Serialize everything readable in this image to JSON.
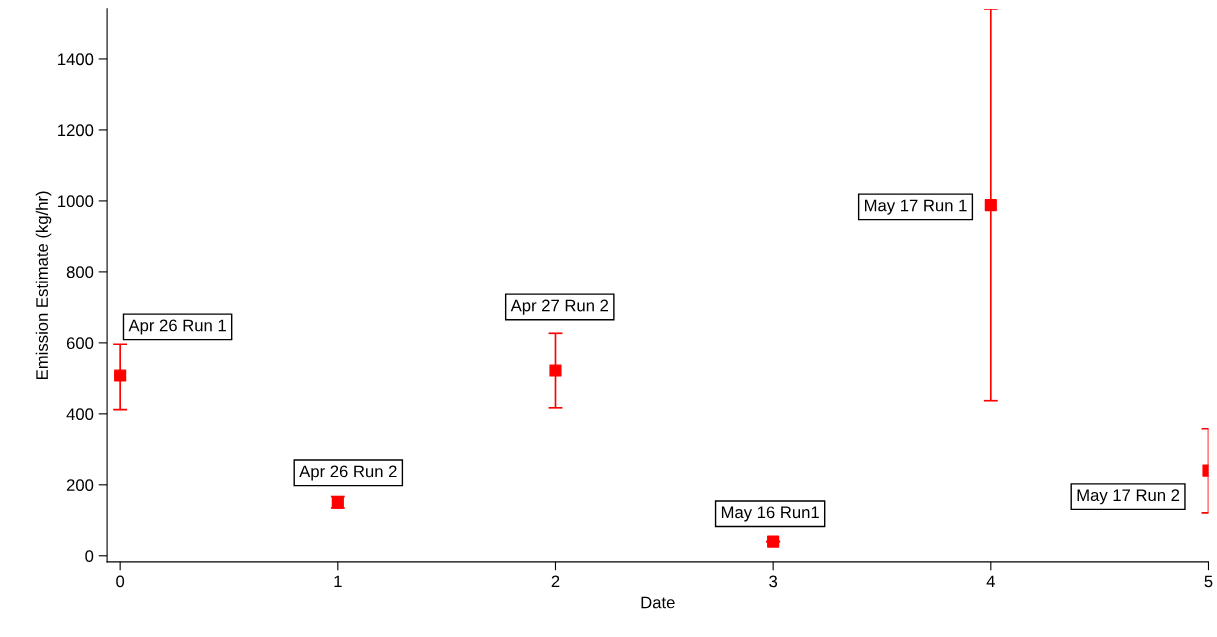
{
  "chart_data": {
    "type": "scatter",
    "xlabel": "Date",
    "ylabel": "Emission Estimate (kg/hr)",
    "x": [
      0,
      1,
      2,
      3,
      4,
      5
    ],
    "series": [
      {
        "color": "#ff0000",
        "values": [
          508,
          150,
          522,
          40,
          988,
          240
        ],
        "errors": [
          [
            412,
            596
          ],
          [
            135,
            167
          ],
          [
            417,
            627
          ],
          null,
          [
            437,
            1541
          ],
          [
            121,
            358
          ]
        ]
      }
    ],
    "marker": "square",
    "grid": false,
    "xlim": [
      -0.06,
      5
    ],
    "xticks": [
      0,
      1,
      2,
      3,
      4,
      5
    ],
    "ylim": [
      -17,
      1541
    ],
    "yticks": [
      0,
      200,
      400,
      600,
      800,
      1000,
      1200,
      1400
    ],
    "annotations": [
      "Apr 26 Run 1",
      "Apr 26 Run 2",
      "Apr 27 Run 2",
      "May 16 Run1",
      "May 17 Run 1",
      "May 17 Run 2"
    ]
  }
}
